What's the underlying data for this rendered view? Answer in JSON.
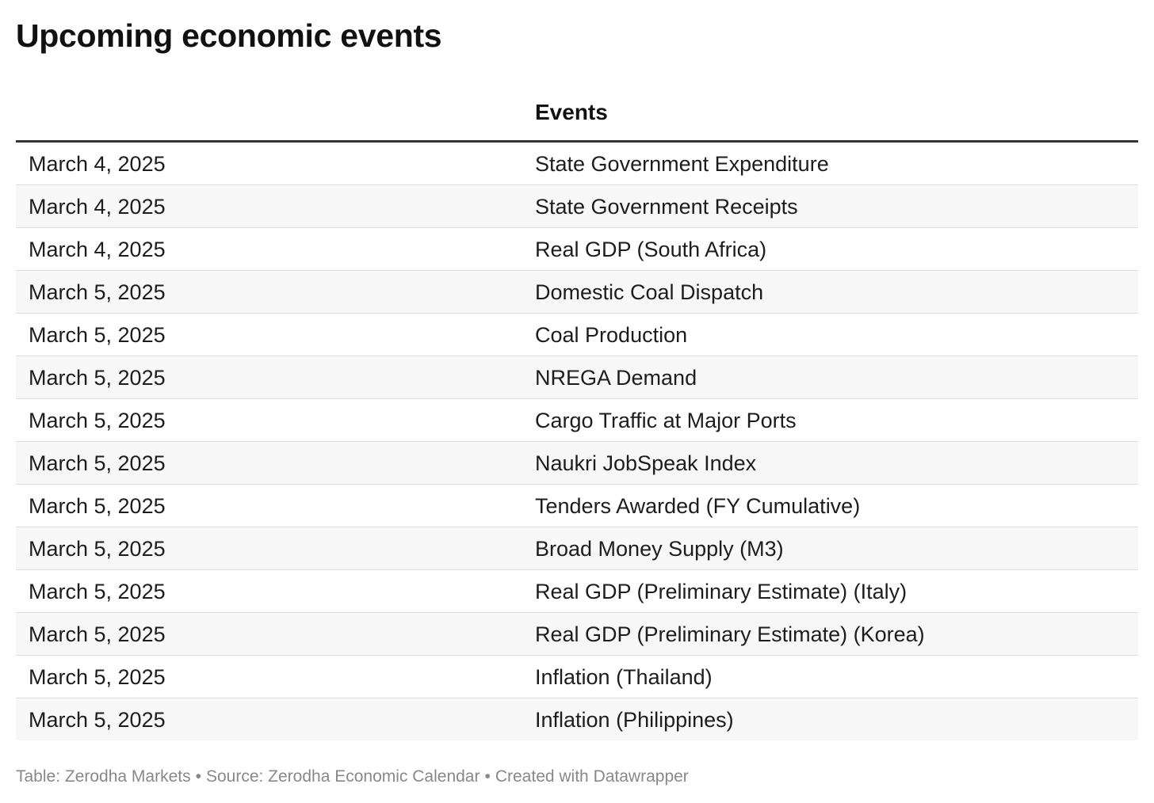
{
  "title": "Upcoming economic events",
  "chart_data": {
    "type": "table",
    "title": "Upcoming economic events",
    "columns": [
      "",
      "Events"
    ],
    "rows": [
      [
        "March 4, 2025",
        "State Government Expenditure"
      ],
      [
        "March 4, 2025",
        "State Government Receipts"
      ],
      [
        "March 4, 2025",
        "Real GDP (South Africa)"
      ],
      [
        "March 5, 2025",
        "Domestic Coal Dispatch"
      ],
      [
        "March 5, 2025",
        "Coal Production"
      ],
      [
        "March 5, 2025",
        "NREGA Demand"
      ],
      [
        "March 5, 2025",
        "Cargo Traffic at Major Ports"
      ],
      [
        "March 5, 2025",
        "Naukri JobSpeak Index"
      ],
      [
        "March 5, 2025",
        "Tenders Awarded (FY Cumulative)"
      ],
      [
        "March 5, 2025",
        "Broad Money Supply (M3)"
      ],
      [
        "March 5, 2025",
        "Real GDP (Preliminary Estimate) (Italy)"
      ],
      [
        "March 5, 2025",
        "Real GDP (Preliminary Estimate) (Korea)"
      ],
      [
        "March 5, 2025",
        "Inflation (Thailand)"
      ],
      [
        "March 5, 2025",
        "Inflation (Philippines)"
      ]
    ]
  },
  "footer": {
    "table_credit": "Table: Zerodha Markets",
    "source": "Source: Zerodha Economic Calendar",
    "created_with": "Created with Datawrapper",
    "separator": "•"
  },
  "colors": {
    "title": "#111111",
    "text": "#1d1d1d",
    "header_rule": "#333333",
    "row_divider": "#dddddd",
    "row_alt_background": "#f7f7f7",
    "footer_text": "#888888"
  }
}
